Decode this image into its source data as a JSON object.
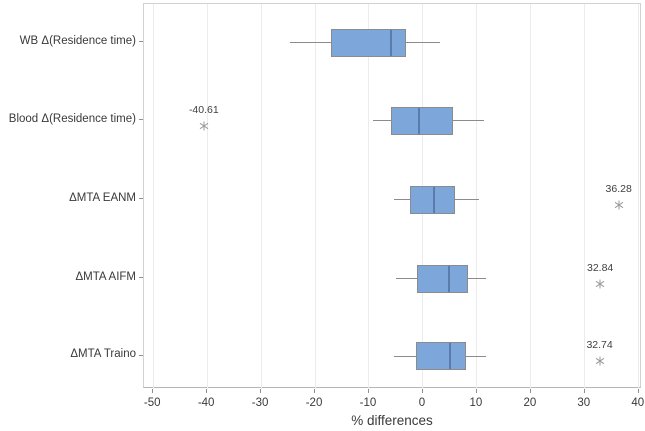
{
  "chart_data": {
    "type": "boxplot",
    "orientation": "horizontal",
    "title": "",
    "xlabel": "% differences",
    "x_ticks": [
      -50,
      -40,
      -30,
      -20,
      -10,
      0,
      10,
      20,
      30,
      40
    ],
    "x_range": [
      -51.7,
      40.6
    ],
    "grid": true,
    "legend": false,
    "categories": [
      "WB Δ(Residence time)",
      "Blood Δ(Residence time)",
      "ΔMTA EANM",
      "ΔMTA AIFM",
      "ΔMTA Traino"
    ],
    "series": [
      {
        "category": "WB Δ(Residence time)",
        "whisker_low": -24.6,
        "q1": -17.0,
        "median": -6.0,
        "q3": -3.1,
        "whisker_high": 3.1,
        "outliers": []
      },
      {
        "category": "Blood Δ(Residence time)",
        "whisker_low": -9.3,
        "q1": -5.9,
        "median": -0.8,
        "q3": 5.5,
        "whisker_high": 11.4,
        "outliers": [
          {
            "value": -40.61,
            "label": "-40.61"
          }
        ]
      },
      {
        "category": "ΔMTA EANM",
        "whisker_low": -5.3,
        "q1": -2.4,
        "median": 2.1,
        "q3": 5.9,
        "whisker_high": 10.4,
        "outliers": [
          {
            "value": 36.28,
            "label": "36.28"
          }
        ]
      },
      {
        "category": "ΔMTA AIFM",
        "whisker_low": -5.0,
        "q1": -1.1,
        "median": 4.9,
        "q3": 8.3,
        "whisker_high": 11.7,
        "outliers": [
          {
            "value": 32.84,
            "label": "32.84"
          }
        ]
      },
      {
        "category": "ΔMTA Traino",
        "whisker_low": -5.3,
        "q1": -1.3,
        "median": 5.1,
        "q3": 8.0,
        "whisker_high": 11.7,
        "outliers": [
          {
            "value": 32.74,
            "label": "32.74"
          }
        ]
      }
    ],
    "colors": {
      "box_fill": "#7da7db",
      "box_border": "#8b8b8b",
      "median_line": "#5a7bab",
      "whisker": "#8b8b8b",
      "gridline": "#ececec",
      "frame": "#d2d2d2",
      "axis_line": "#b5b5b5",
      "tick": "#8f8f8f",
      "text": "#3a3a3a",
      "outlier": "#9a9a9a"
    }
  }
}
